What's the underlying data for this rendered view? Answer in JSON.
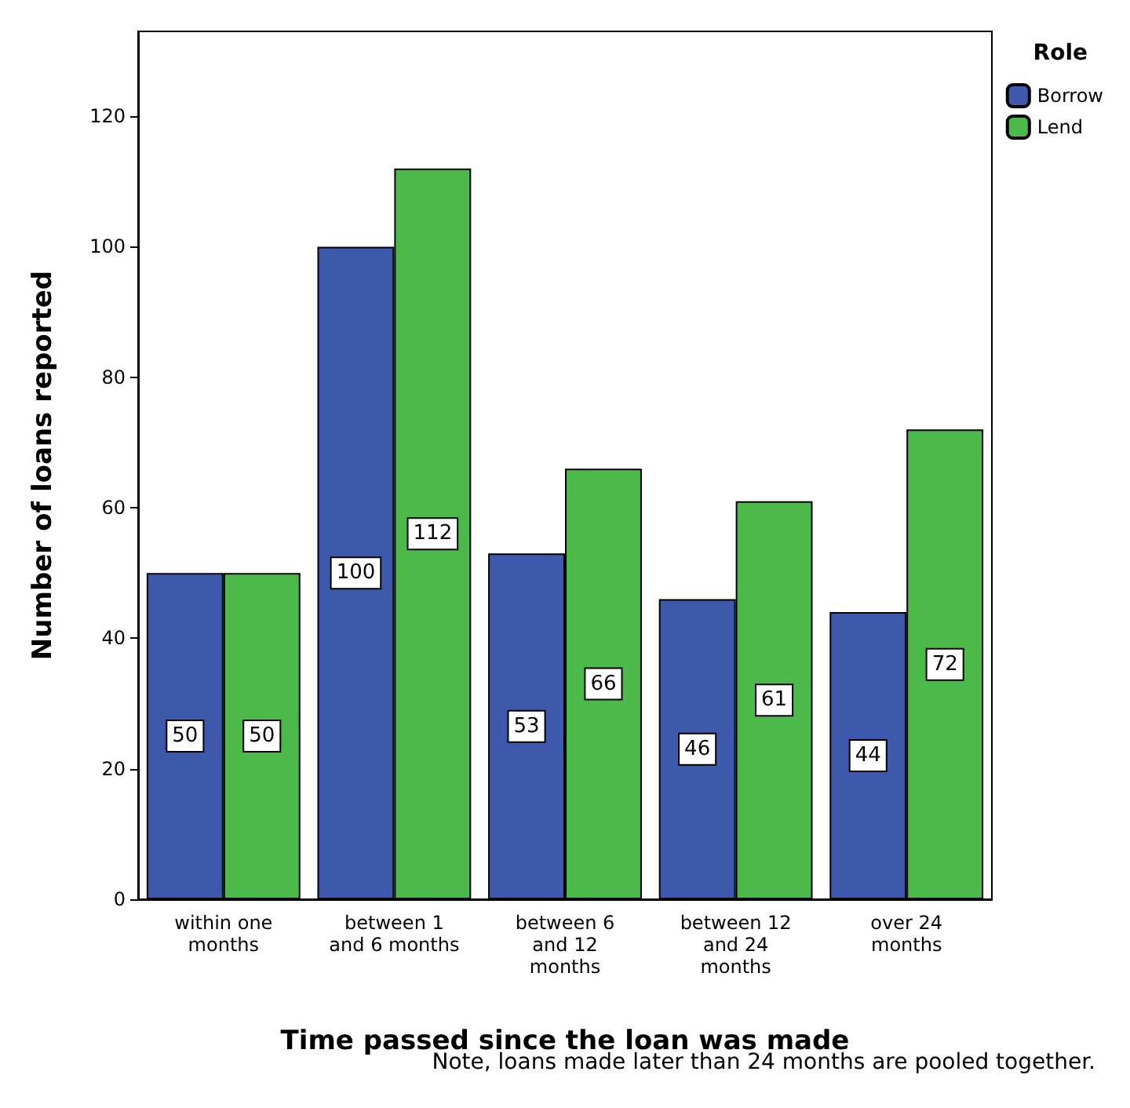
{
  "chart_data": {
    "type": "bar",
    "xlabel": "Time passed since the loan was made",
    "ylabel": "Number of loans reported",
    "legend_title": "Role",
    "categories": [
      "within one\nmonths",
      "between 1\nand 6 months",
      "between 6\nand 12\nmonths",
      "between 12\nand 24\nmonths",
      "over 24\nmonths"
    ],
    "series": [
      {
        "name": "Borrow",
        "color": "#3e58ac",
        "values": [
          50,
          100,
          53,
          46,
          44
        ]
      },
      {
        "name": "Lend",
        "color": "#4cba4a",
        "values": [
          50,
          112,
          66,
          61,
          72
        ]
      }
    ],
    "ylim": [
      0,
      133
    ],
    "yticks": [
      0,
      20,
      40,
      60,
      80,
      100,
      120
    ],
    "grid": false,
    "legend": "top right",
    "data_labels": true,
    "annotations": [
      "Note, loans made later than 24 months are pooled together."
    ]
  }
}
